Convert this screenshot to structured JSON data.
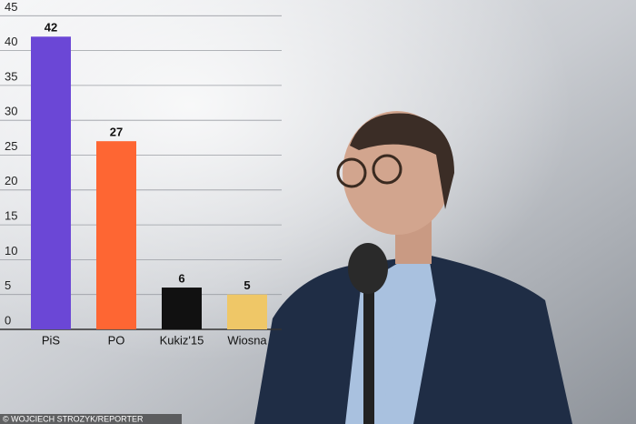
{
  "chart_data": {
    "type": "bar",
    "categories": [
      "PiS",
      "PO",
      "Kukiz'15",
      "Wiosna"
    ],
    "series": [
      {
        "values": [
          42,
          27,
          6,
          5
        ],
        "colors": [
          "#6b47d6",
          "#fe6633",
          "#111111",
          "#efc767"
        ]
      }
    ],
    "ylim": [
      0,
      45
    ],
    "yticks": [
      0,
      5,
      10,
      15,
      20,
      25,
      30,
      35,
      40,
      45
    ],
    "grid": true
  },
  "credit": "© WOJCIECH STROZYK/REPORTER"
}
